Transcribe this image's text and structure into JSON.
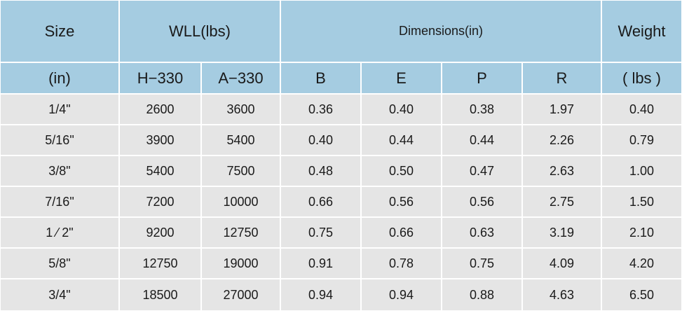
{
  "table": {
    "header_top": [
      "Size",
      "WLL(lbs)",
      "Dimensions(in)",
      "Weight"
    ],
    "header_sub": [
      "(in)",
      "H−330",
      "A−330",
      "B",
      "E",
      "P",
      "R",
      "( lbs )"
    ],
    "rows": [
      [
        "1/4\"",
        "2600",
        "3600",
        "0.36",
        "0.40",
        "0.38",
        "1.97",
        "0.40"
      ],
      [
        "5/16\"",
        "3900",
        "5400",
        "0.40",
        "0.44",
        "0.44",
        "2.26",
        "0.79"
      ],
      [
        "3/8\"",
        "5400",
        "7500",
        "0.48",
        "0.50",
        "0.47",
        "2.63",
        "1.00"
      ],
      [
        "7/16\"",
        "7200",
        "10000",
        "0.66",
        "0.56",
        "0.56",
        "2.75",
        "1.50"
      ],
      [
        "1 ⁄ 2\"",
        "9200",
        "12750",
        "0.75",
        "0.66",
        "0.63",
        "3.19",
        "2.10"
      ],
      [
        "5/8\"",
        "12750",
        "19000",
        "0.91",
        "0.78",
        "0.75",
        "4.09",
        "4.20"
      ],
      [
        "3/4\"",
        "18500",
        "27000",
        "0.94",
        "0.94",
        "0.88",
        "4.63",
        "6.50"
      ]
    ]
  }
}
